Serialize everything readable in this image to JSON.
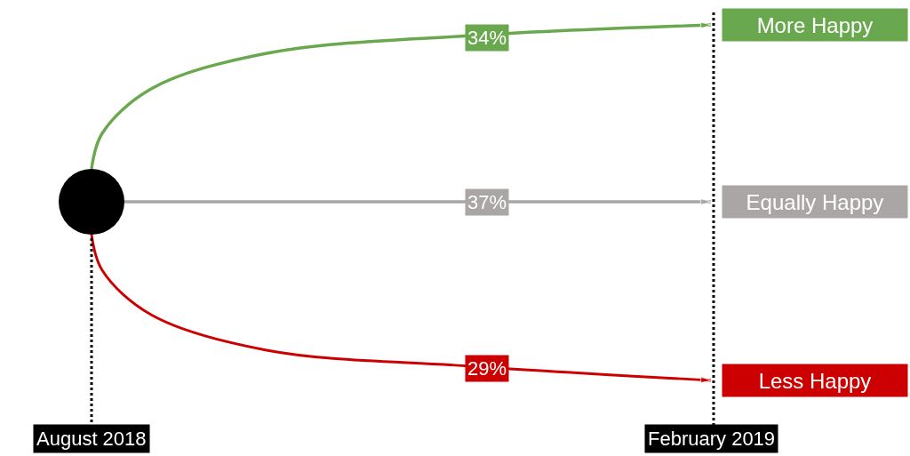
{
  "chart_data": {
    "type": "other",
    "categories": [
      "More Happy",
      "Equally Happy",
      "Less Happy"
    ],
    "values": [
      34,
      37,
      29
    ],
    "value_labels": [
      "34%",
      "37%",
      "29%"
    ],
    "colors": [
      "#6aa84f",
      "#aaa6a6",
      "#cc0000"
    ],
    "annotations": [
      "August 2018",
      "February 2019"
    ]
  }
}
